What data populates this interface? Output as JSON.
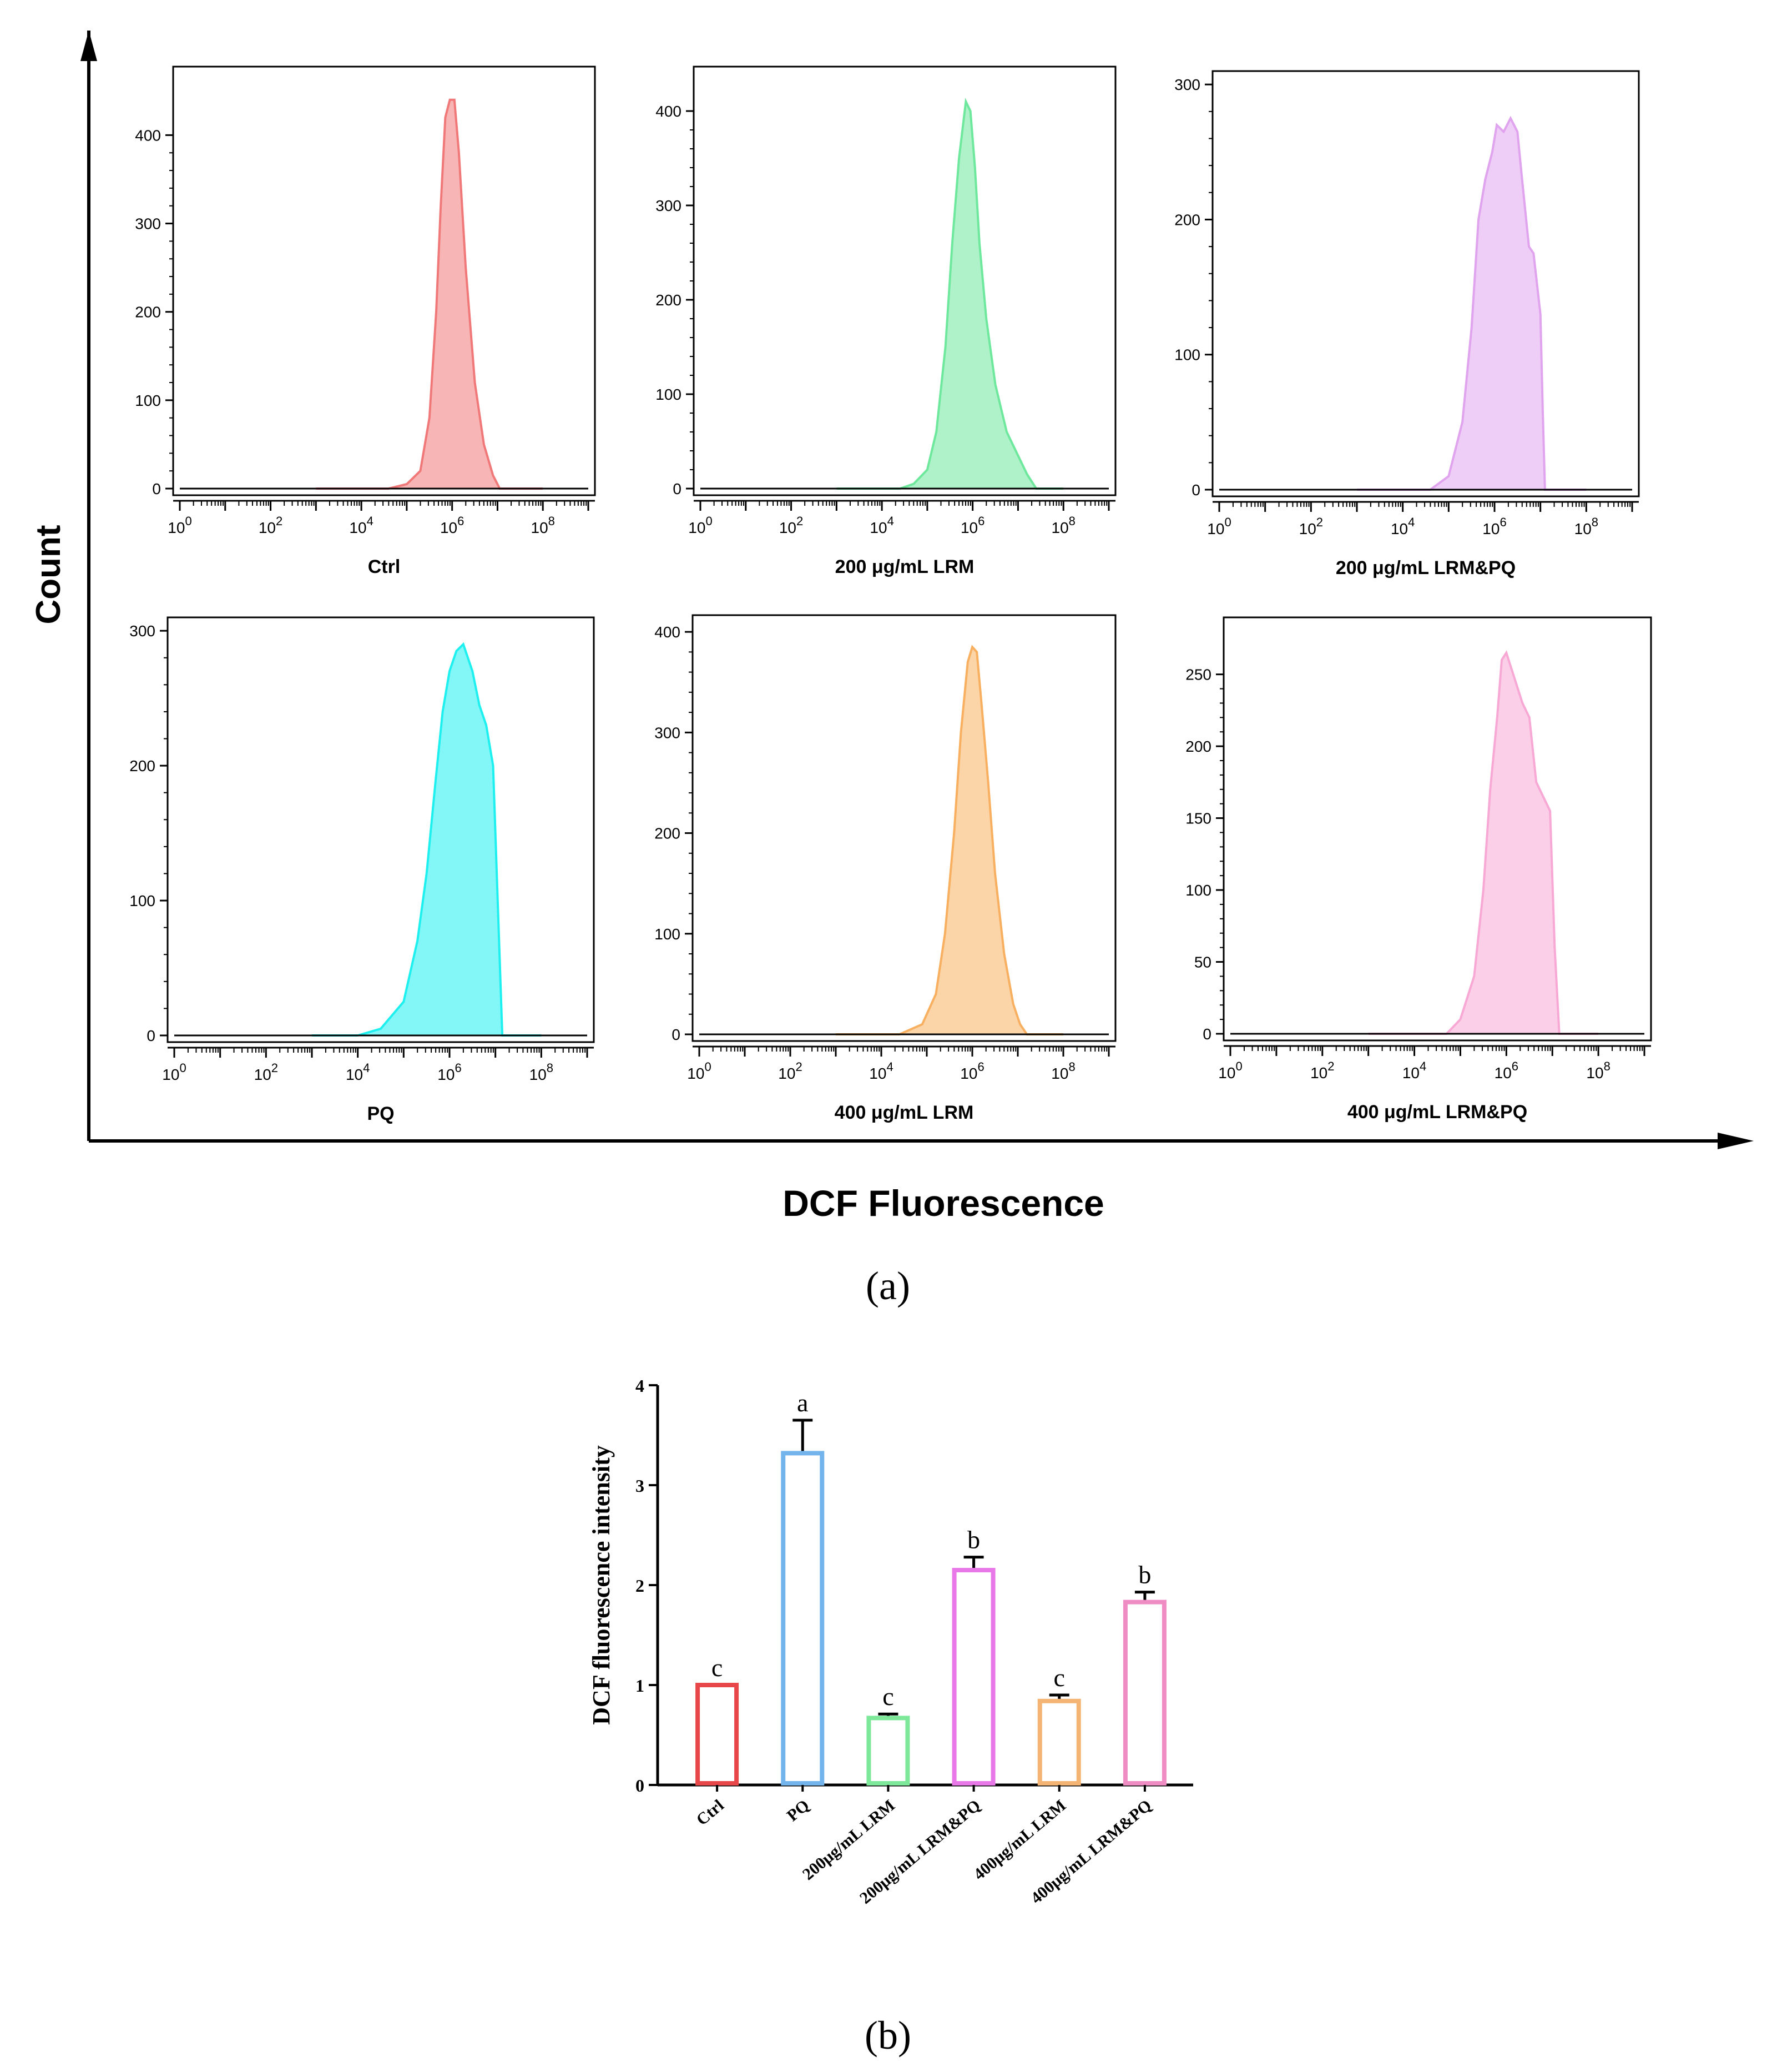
{
  "panel_a": {
    "y_axis_label": "Count",
    "x_axis_label": "DCF Fluorescence",
    "caption": "(a)",
    "x_tick_labels": [
      {
        "base": "10",
        "exp": "0"
      },
      {
        "base": "10",
        "exp": "2"
      },
      {
        "base": "10",
        "exp": "4"
      },
      {
        "base": "10",
        "exp": "6"
      },
      {
        "base": "10",
        "exp": "8"
      }
    ]
  },
  "panel_b": {
    "caption": "(b)"
  },
  "chart_data": [
    {
      "type": "area",
      "title": "Ctrl",
      "xlabel": "DCF Fluorescence",
      "ylabel": "Count",
      "x_scale": "log10",
      "xlim": [
        1,
        1000000000
      ],
      "ylim": [
        0,
        470
      ],
      "y_ticks": [
        0,
        100,
        200,
        300,
        400
      ],
      "color": "#f07878",
      "series": [
        {
          "name": "Ctrl",
          "x_log10": [
            3.0,
            4.6,
            5.0,
            5.3,
            5.5,
            5.65,
            5.75,
            5.85,
            5.95,
            6.05,
            6.15,
            6.3,
            6.5,
            6.7,
            6.9,
            7.05,
            8.0
          ],
          "values": [
            0,
            0,
            5,
            20,
            80,
            200,
            320,
            420,
            440,
            440,
            380,
            250,
            120,
            50,
            15,
            0,
            0
          ]
        }
      ]
    },
    {
      "type": "area",
      "title": "200 μg/mL LRM",
      "xlabel": "DCF Fluorescence",
      "ylabel": "Count",
      "x_scale": "log10",
      "xlim": [
        1,
        1000000000
      ],
      "ylim": [
        0,
        440
      ],
      "y_ticks": [
        0,
        100,
        200,
        300,
        400
      ],
      "color": "#6ee89c",
      "series": [
        {
          "name": "200 μg/mL LRM",
          "x_log10": [
            3.0,
            4.4,
            4.7,
            5.0,
            5.2,
            5.4,
            5.55,
            5.7,
            5.85,
            5.95,
            6.05,
            6.15,
            6.3,
            6.5,
            6.75,
            7.0,
            7.2,
            7.4,
            8.0
          ],
          "values": [
            0,
            0,
            5,
            20,
            60,
            150,
            260,
            350,
            410,
            400,
            340,
            260,
            180,
            110,
            60,
            35,
            15,
            0,
            0
          ]
        }
      ]
    },
    {
      "type": "area",
      "title": "200 μg/mL LRM&PQ",
      "xlabel": "DCF Fluorescence",
      "ylabel": "Count",
      "x_scale": "log10",
      "xlim": [
        1,
        1000000000
      ],
      "ylim": [
        0,
        305
      ],
      "y_ticks": [
        0,
        100,
        200,
        300
      ],
      "color": "#e0a4ef",
      "series": [
        {
          "name": "200 μg/mL LRM&PQ",
          "x_log10": [
            3.0,
            4.6,
            5.0,
            5.3,
            5.5,
            5.65,
            5.8,
            5.95,
            6.05,
            6.2,
            6.35,
            6.5,
            6.6,
            6.75,
            6.85,
            7.0,
            7.05,
            7.1,
            8.0
          ],
          "values": [
            0,
            0,
            10,
            50,
            120,
            200,
            230,
            250,
            270,
            265,
            275,
            265,
            230,
            180,
            175,
            130,
            60,
            0,
            0
          ]
        }
      ]
    },
    {
      "type": "area",
      "title": "PQ",
      "xlabel": "DCF Fluorescence",
      "ylabel": "Count",
      "x_scale": "log10",
      "xlim": [
        1,
        1000000000
      ],
      "ylim": [
        0,
        305
      ],
      "y_ticks": [
        0,
        100,
        200,
        300
      ],
      "color": "#1ef0f0",
      "series": [
        {
          "name": "PQ",
          "x_log10": [
            3.0,
            4.0,
            4.5,
            5.0,
            5.3,
            5.5,
            5.7,
            5.85,
            6.0,
            6.15,
            6.3,
            6.5,
            6.65,
            6.8,
            6.95,
            7.05,
            7.15,
            8.0
          ],
          "values": [
            0,
            0,
            5,
            25,
            70,
            120,
            190,
            240,
            270,
            285,
            290,
            270,
            245,
            230,
            200,
            100,
            0,
            0
          ]
        }
      ]
    },
    {
      "type": "area",
      "title": "400 μg/mL LRM",
      "xlabel": "DCF Fluorescence",
      "ylabel": "Count",
      "x_scale": "log10",
      "xlim": [
        1,
        1000000000
      ],
      "ylim": [
        0,
        410
      ],
      "y_ticks": [
        0,
        100,
        200,
        300,
        400
      ],
      "color": "#f8b060",
      "series": [
        {
          "name": "400 μg/mL LRM",
          "x_log10": [
            3.0,
            4.4,
            4.9,
            5.2,
            5.4,
            5.6,
            5.75,
            5.9,
            6.0,
            6.1,
            6.2,
            6.35,
            6.5,
            6.7,
            6.9,
            7.05,
            7.2,
            8.0
          ],
          "values": [
            0,
            0,
            10,
            40,
            100,
            200,
            300,
            370,
            385,
            380,
            330,
            250,
            160,
            80,
            30,
            10,
            0,
            0
          ]
        }
      ]
    },
    {
      "type": "area",
      "title": "400 μg/mL LRM&PQ",
      "xlabel": "DCF Fluorescence",
      "ylabel": "Count",
      "x_scale": "log10",
      "xlim": [
        1,
        1000000000
      ],
      "ylim": [
        0,
        285
      ],
      "y_ticks": [
        0,
        50,
        100,
        150,
        200,
        250
      ],
      "color": "#f8a8d4",
      "series": [
        {
          "name": "400 μg/mL LRM&PQ",
          "x_log10": [
            3.0,
            4.7,
            5.0,
            5.3,
            5.5,
            5.65,
            5.8,
            5.9,
            6.0,
            6.1,
            6.2,
            6.35,
            6.5,
            6.65,
            6.8,
            6.95,
            7.05,
            7.15,
            8.0
          ],
          "values": [
            0,
            0,
            10,
            40,
            100,
            170,
            220,
            260,
            265,
            255,
            245,
            230,
            220,
            175,
            165,
            155,
            60,
            0,
            0
          ]
        }
      ]
    },
    {
      "type": "bar",
      "title": "",
      "xlabel": "",
      "ylabel": "DCF fluorescence intensity",
      "ylim": [
        0,
        4
      ],
      "y_ticks": [
        0,
        1,
        2,
        3,
        4
      ],
      "categories": [
        "Ctrl",
        "PQ",
        "200μg/mL LRM",
        "200μg/mL LRM&PQ",
        "400μg/mL LRM",
        "400μg/mL LRM&PQ"
      ],
      "values": [
        1.0,
        3.32,
        0.67,
        2.15,
        0.84,
        1.83
      ],
      "errors": [
        0.0,
        0.33,
        0.04,
        0.13,
        0.06,
        0.1
      ],
      "significance": [
        "c",
        "a",
        "c",
        "b",
        "c",
        "b"
      ],
      "colors": [
        "#e8474a",
        "#74b4ec",
        "#7ee89a",
        "#e878e8",
        "#f4b474",
        "#f08cc4"
      ]
    }
  ]
}
